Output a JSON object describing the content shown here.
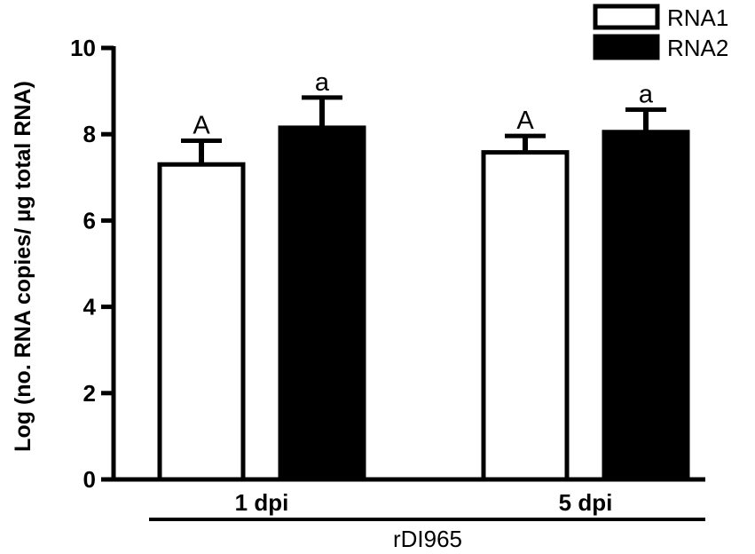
{
  "chart_data": {
    "type": "bar",
    "categories": [
      "1 dpi",
      "5 dpi"
    ],
    "group_label": "rDI965",
    "ylabel": "Log (no. RNA copies/ µg total RNA)",
    "ylim": [
      0,
      10
    ],
    "yticks": [
      0,
      2,
      4,
      6,
      8,
      10
    ],
    "legend_position": "top-right",
    "series": [
      {
        "name": "RNA1",
        "fill": "#ffffff",
        "values": [
          7.3,
          7.58
        ],
        "errors": [
          0.55,
          0.38
        ],
        "sig_labels": [
          "A",
          "A"
        ]
      },
      {
        "name": "RNA2",
        "fill": "#000000",
        "values": [
          8.15,
          8.05
        ],
        "errors": [
          0.7,
          0.52
        ],
        "sig_labels": [
          "a",
          "a"
        ]
      }
    ]
  }
}
